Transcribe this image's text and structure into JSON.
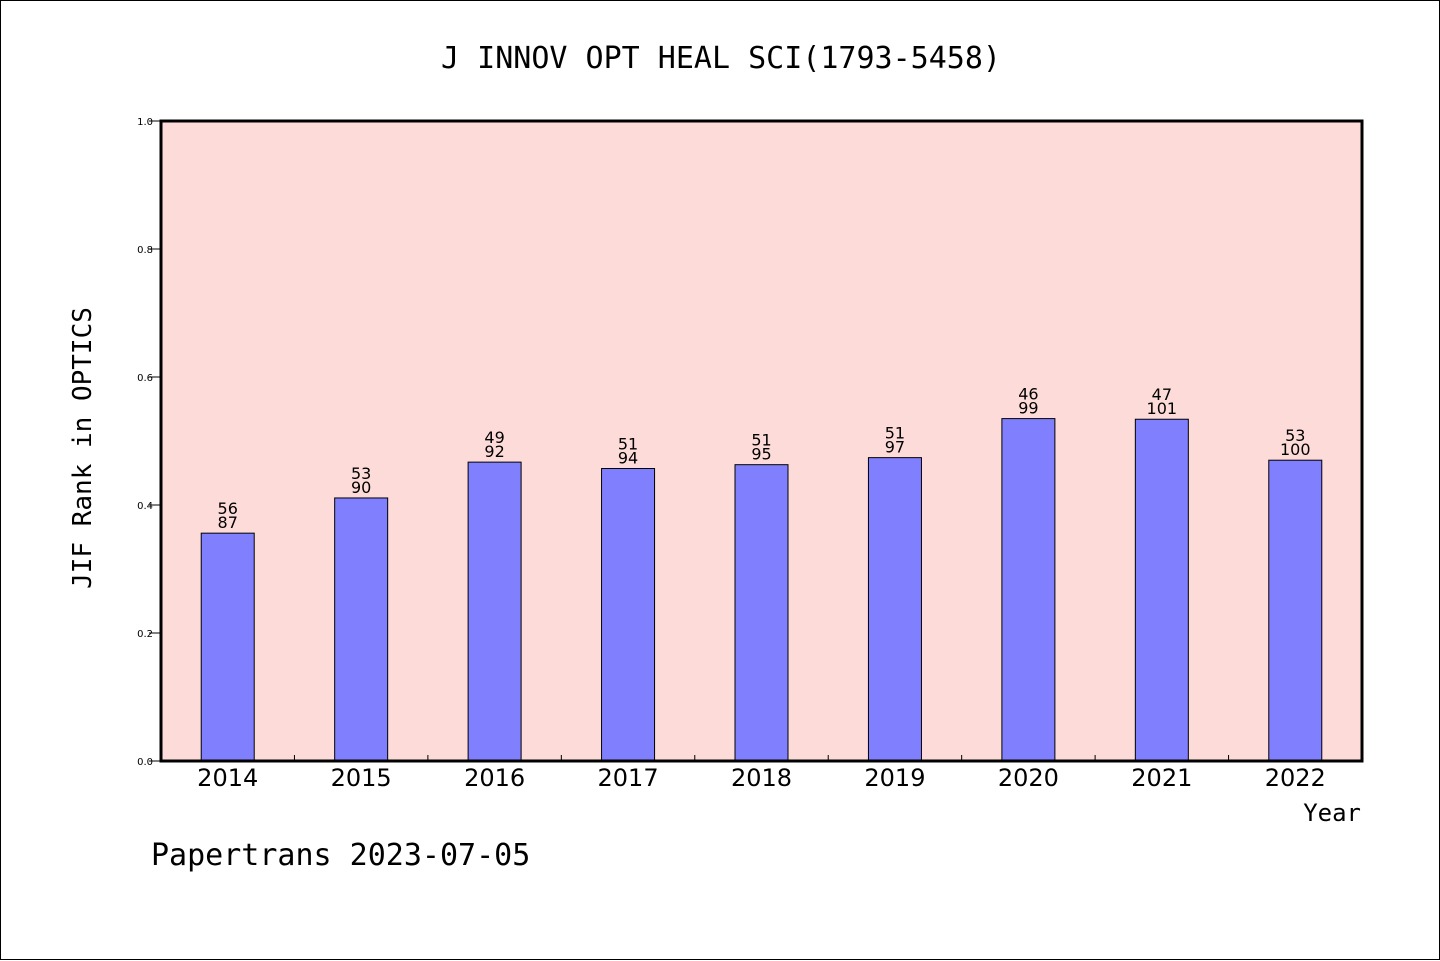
{
  "chart_data": {
    "type": "bar",
    "title": "J INNOV OPT HEAL SCI(1793-5458)",
    "xlabel": "Year",
    "ylabel": "JIF Rank in OPTICS",
    "ylim": [
      0,
      1.0
    ],
    "yticks": [
      "0.0",
      "0.2",
      "0.4",
      "0.6",
      "0.8",
      "1.0"
    ],
    "categories": [
      "2014",
      "2015",
      "2016",
      "2017",
      "2018",
      "2019",
      "2020",
      "2021",
      "2022"
    ],
    "values": [
      0.356,
      0.411,
      0.467,
      0.457,
      0.463,
      0.474,
      0.535,
      0.534,
      0.47
    ],
    "bar_labels": [
      [
        "56",
        "87"
      ],
      [
        "53",
        "90"
      ],
      [
        "49",
        "92"
      ],
      [
        "51",
        "94"
      ],
      [
        "51",
        "95"
      ],
      [
        "51",
        "97"
      ],
      [
        "46",
        "99"
      ],
      [
        "47",
        "101"
      ],
      [
        "53",
        "100"
      ]
    ],
    "grid": false,
    "colors": {
      "bar": "#8080ff",
      "plot_background": "#fddbd8",
      "axes": "#000000"
    }
  },
  "footer": "Papertrans 2023-07-05"
}
